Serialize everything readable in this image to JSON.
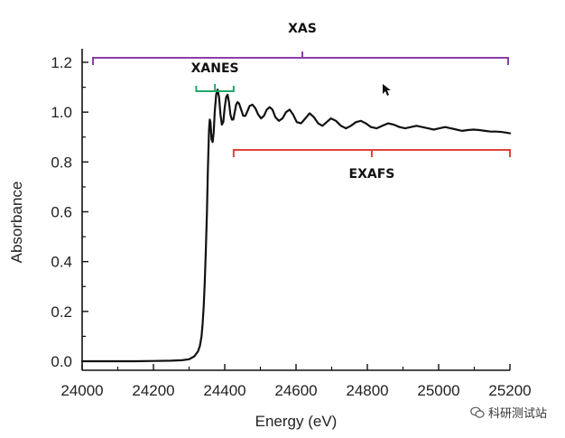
{
  "chart_data": {
    "type": "line",
    "xlabel": "Energy (eV)",
    "ylabel": "Absorbance",
    "xlim": [
      24000,
      25200
    ],
    "ylim": [
      -0.05,
      1.2
    ],
    "xticks": [
      24000,
      24200,
      24400,
      24600,
      24800,
      25000,
      25200
    ],
    "yticks": [
      0.0,
      0.2,
      0.4,
      0.6,
      0.8,
      1.0,
      1.2
    ],
    "xtick_labels": [
      "24000",
      "24200",
      "24400",
      "24600",
      "24800",
      "25000",
      "25200"
    ],
    "ytick_labels": [
      "0.0",
      "0.2",
      "0.4",
      "0.6",
      "0.8",
      "1.0",
      "1.2"
    ],
    "grid": false,
    "line_color": "#111111",
    "series": [
      {
        "x": [
          24000,
          24050,
          24100,
          24150,
          24200,
          24250,
          24280,
          24300,
          24315,
          24325,
          24330,
          24335,
          24338,
          24341,
          24344,
          24347,
          24350,
          24353,
          24356,
          24358,
          24360,
          24363,
          24366,
          24369,
          24372,
          24376,
          24380,
          24384,
          24388,
          24392,
          24396,
          24400,
          24404,
          24408,
          24412,
          24416,
          24420,
          24424,
          24428,
          24432,
          24436,
          24440,
          24446,
          24452,
          24458,
          24464,
          24470,
          24478,
          24486,
          24494,
          24502,
          24510,
          24518,
          24526,
          24534,
          24542,
          24552,
          24562,
          24572,
          24582,
          24592,
          24602,
          24614,
          24626,
          24638,
          24650,
          24662,
          24674,
          24686,
          24698,
          24712,
          24726,
          24740,
          24754,
          24768,
          24782,
          24796,
          24810,
          24826,
          24842,
          24858,
          24874,
          24890,
          24906,
          24922,
          24938,
          24954,
          24970,
          24986,
          25002,
          25018,
          25034,
          25050,
          25066,
          25082,
          25098,
          25114,
          25130,
          25146,
          25162,
          25178,
          25200
        ],
        "values": [
          0.0,
          0.0,
          0.0,
          0.0,
          0.001,
          0.002,
          0.004,
          0.008,
          0.02,
          0.04,
          0.06,
          0.1,
          0.15,
          0.22,
          0.32,
          0.45,
          0.6,
          0.78,
          0.93,
          0.97,
          0.96,
          0.89,
          0.88,
          0.92,
          1.0,
          1.07,
          1.09,
          1.06,
          0.99,
          0.95,
          0.96,
          1.02,
          1.06,
          1.07,
          1.04,
          0.99,
          0.97,
          0.97,
          1.0,
          1.03,
          1.04,
          1.035,
          1.01,
          0.985,
          0.985,
          1.005,
          1.025,
          1.03,
          1.015,
          0.99,
          0.975,
          0.985,
          1.01,
          1.02,
          1.01,
          0.98,
          0.965,
          0.975,
          1.0,
          1.01,
          0.99,
          0.96,
          0.955,
          0.975,
          0.995,
          0.98,
          0.955,
          0.945,
          0.96,
          0.975,
          0.965,
          0.945,
          0.935,
          0.945,
          0.96,
          0.965,
          0.955,
          0.94,
          0.935,
          0.945,
          0.955,
          0.95,
          0.94,
          0.935,
          0.94,
          0.945,
          0.94,
          0.935,
          0.93,
          0.935,
          0.94,
          0.935,
          0.93,
          0.925,
          0.928,
          0.93,
          0.928,
          0.925,
          0.922,
          0.922,
          0.92,
          0.915
        ]
      }
    ],
    "annotations": [
      {
        "label": "XAS",
        "color": "#8b3fa8",
        "x_range": [
          24000,
          25200
        ]
      },
      {
        "label": "XANES",
        "color": "#1fa86a",
        "x_range": [
          24320,
          24425
        ]
      },
      {
        "label": "EXAFS",
        "color": "#e0443a",
        "x_range": [
          24425,
          25200
        ]
      }
    ]
  },
  "watermark": {
    "text": "科研测试站",
    "icon": "wechat-icon"
  }
}
